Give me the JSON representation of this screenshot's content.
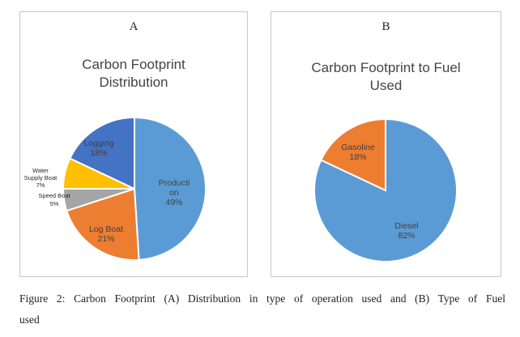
{
  "caption": {
    "line1": "Figure 2: Carbon Footprint (A) Distribution in type of operation used and (B) Type of Fuel",
    "line2": "used"
  },
  "chart_data": [
    {
      "panel": "A",
      "type": "pie",
      "title_lines": [
        "Carbon Footprint",
        "Distribution"
      ],
      "slices": [
        {
          "label_lines": [
            "Producti",
            "on"
          ],
          "value": 49,
          "pct": "49%",
          "color": "#5b9bd5"
        },
        {
          "label_lines": [
            "Log Boat"
          ],
          "value": 21,
          "pct": "21%",
          "color": "#ed7d31"
        },
        {
          "label_lines": [
            "Speed Boat"
          ],
          "value": 5,
          "pct": "5%",
          "color": "#a5a5a5"
        },
        {
          "label_lines": [
            "Water",
            "Supply Boat"
          ],
          "value": 7,
          "pct": "7%",
          "color": "#ffc000"
        },
        {
          "label_lines": [
            "Logging"
          ],
          "value": 18,
          "pct": "18%",
          "color": "#4472c4"
        }
      ]
    },
    {
      "panel": "B",
      "type": "pie",
      "title_lines": [
        "Carbon Footprint to Fuel",
        "Used"
      ],
      "slices": [
        {
          "label_lines": [
            "Diesel"
          ],
          "value": 82,
          "pct": "82%",
          "color": "#5b9bd5"
        },
        {
          "label_lines": [
            "Gasoline"
          ],
          "value": 18,
          "pct": "18%",
          "color": "#ed7d31"
        }
      ]
    }
  ]
}
